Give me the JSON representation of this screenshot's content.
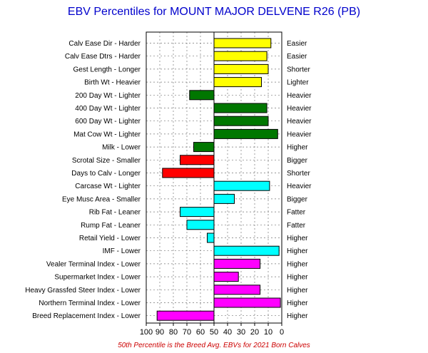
{
  "chart_data": {
    "type": "bar",
    "title": "EBV Percentiles for MOUNT MAJOR DELVENE R26 (PB)",
    "footnote": "50th Percentile is the Breed Avg. EBVs for 2021 Born Calves",
    "x_axis": {
      "min": 100,
      "max": 0,
      "reversed": true,
      "baseline": 50,
      "ticks": [
        "100",
        "90",
        "80",
        "70",
        "60",
        "50",
        "40",
        "30",
        "20",
        "10",
        "0"
      ]
    },
    "grid": true,
    "categories": [
      "Calv Ease Dir - Harder",
      "Calv Ease Dtrs - Harder",
      "Gest Length - Longer",
      "Birth Wt - Heavier",
      "200 Day Wt - Lighter",
      "400 Day Wt - Lighter",
      "600 Day Wt - Lighter",
      "Mat Cow Wt - Lighter",
      "Milk - Lower",
      "Scrotal Size - Smaller",
      "Days to Calv - Longer",
      "Carcase Wt - Lighter",
      "Eye Musc Area - Smaller",
      "Rib Fat - Leaner",
      "Rump Fat - Leaner",
      "Retail Yield - Lower",
      "IMF - Lower",
      "Vealer Terminal Index - Lower",
      "Supermarket Index - Lower",
      "Heavy Grassfed Steer Index - Lower",
      "Northern Terminal Index - Lower",
      "Breed Replacement Index - Lower"
    ],
    "right_labels": [
      "Easier",
      "Easier",
      "Shorter",
      "Lighter",
      "Heavier",
      "Heavier",
      "Heavier",
      "Heavier",
      "Higher",
      "Bigger",
      "Shorter",
      "Heavier",
      "Bigger",
      "Fatter",
      "Fatter",
      "Higher",
      "Higher",
      "Higher",
      "Higher",
      "Higher",
      "Higher",
      "Higher"
    ],
    "values": [
      8,
      11,
      10,
      15,
      68,
      11,
      10,
      3,
      65,
      75,
      88,
      9,
      35,
      75,
      70,
      55,
      2,
      16,
      32,
      16,
      1,
      92
    ],
    "colors": [
      "#ffff00",
      "#ffff00",
      "#ffff00",
      "#ffff00",
      "#007700",
      "#007700",
      "#007700",
      "#007700",
      "#007700",
      "#ff0000",
      "#ff0000",
      "#00ffff",
      "#00ffff",
      "#00ffff",
      "#00ffff",
      "#00ffff",
      "#00ffff",
      "#ff00ff",
      "#ff00ff",
      "#ff00ff",
      "#ff00ff",
      "#ff00ff"
    ]
  }
}
